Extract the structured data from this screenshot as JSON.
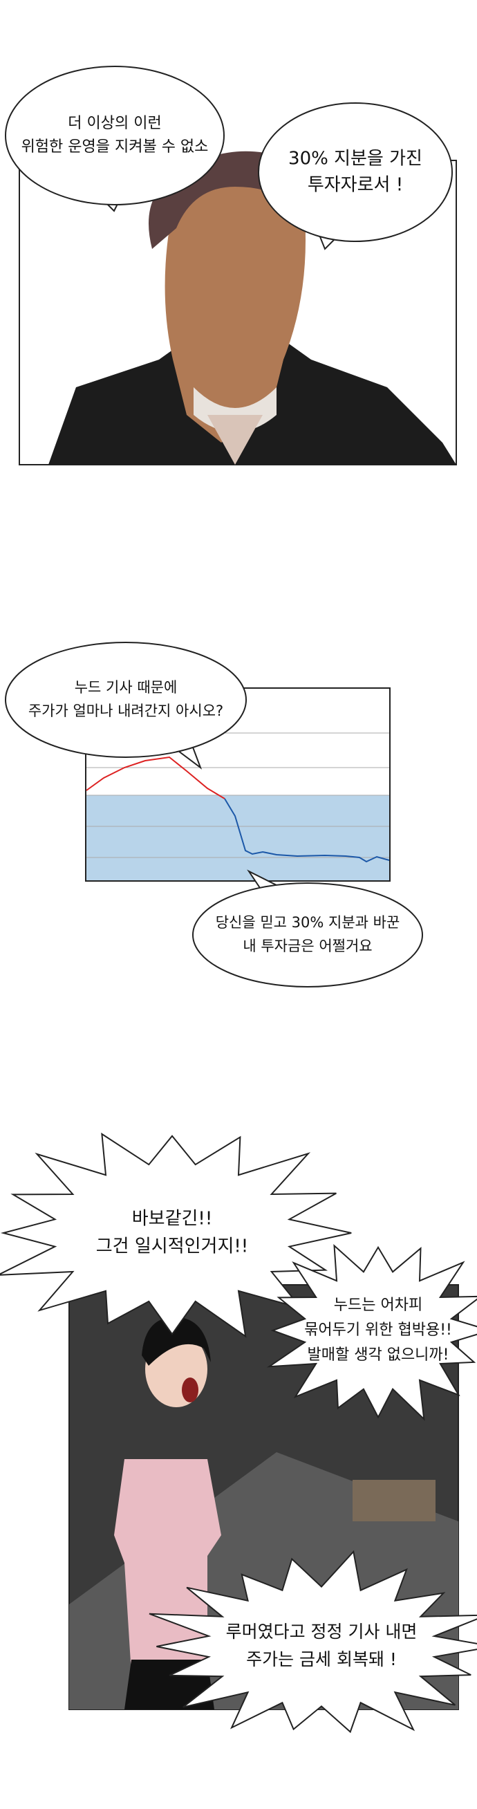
{
  "bubbles": [
    {
      "lines": [
        "더 이상의 이런",
        "위험한 운영을 지켜볼 수 없소"
      ]
    },
    {
      "lines": [
        "30% 지분을 가진",
        "투자자로서 !"
      ]
    },
    {
      "lines": [
        "누드 기사 때문에",
        "주가가 얼마나 내려간지 아시오?"
      ]
    },
    {
      "lines": [
        "당신을 믿고 30% 지분과 바꾼",
        "내 투자금은 어쩔거요"
      ]
    },
    {
      "lines": [
        "바보같긴!!",
        "그건 일시적인거지!!"
      ]
    },
    {
      "lines": [
        "누드는 어차피",
        "묶어두기 위한 협박용!!",
        "발매할 생각 없으니까!"
      ]
    },
    {
      "lines": [
        "루머였다고 정정 기사 내면",
        "주가는 금세 회복돼 !"
      ]
    }
  ]
}
